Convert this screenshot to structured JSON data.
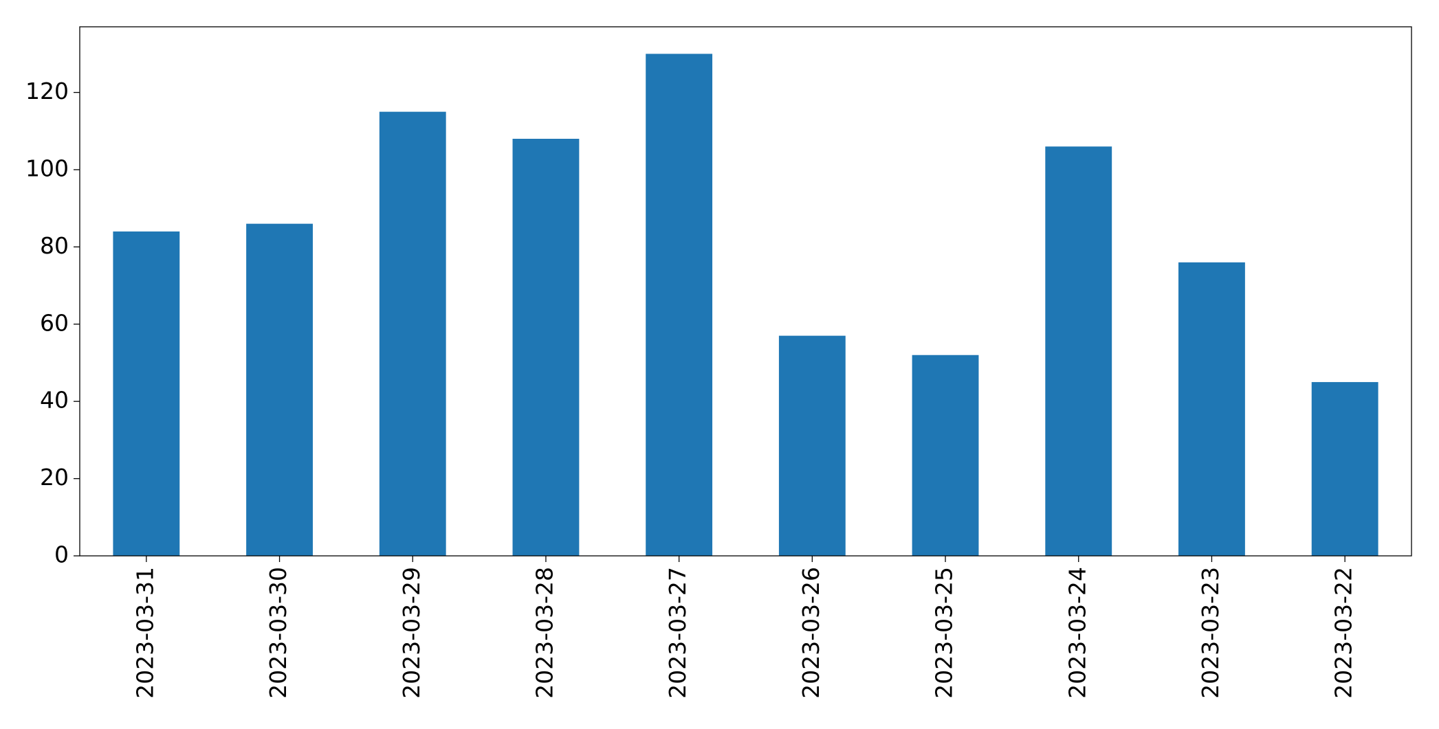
{
  "chart_data": {
    "type": "bar",
    "categories": [
      "2023-03-31",
      "2023-03-30",
      "2023-03-29",
      "2023-03-28",
      "2023-03-27",
      "2023-03-26",
      "2023-03-25",
      "2023-03-24",
      "2023-03-23",
      "2023-03-22"
    ],
    "values": [
      84,
      86,
      115,
      108,
      130,
      57,
      52,
      106,
      76,
      45
    ],
    "color": "#1f77b4",
    "ylim": [
      0,
      137
    ],
    "yticks": [
      0,
      20,
      40,
      60,
      80,
      100,
      120
    ],
    "grid": false
  }
}
